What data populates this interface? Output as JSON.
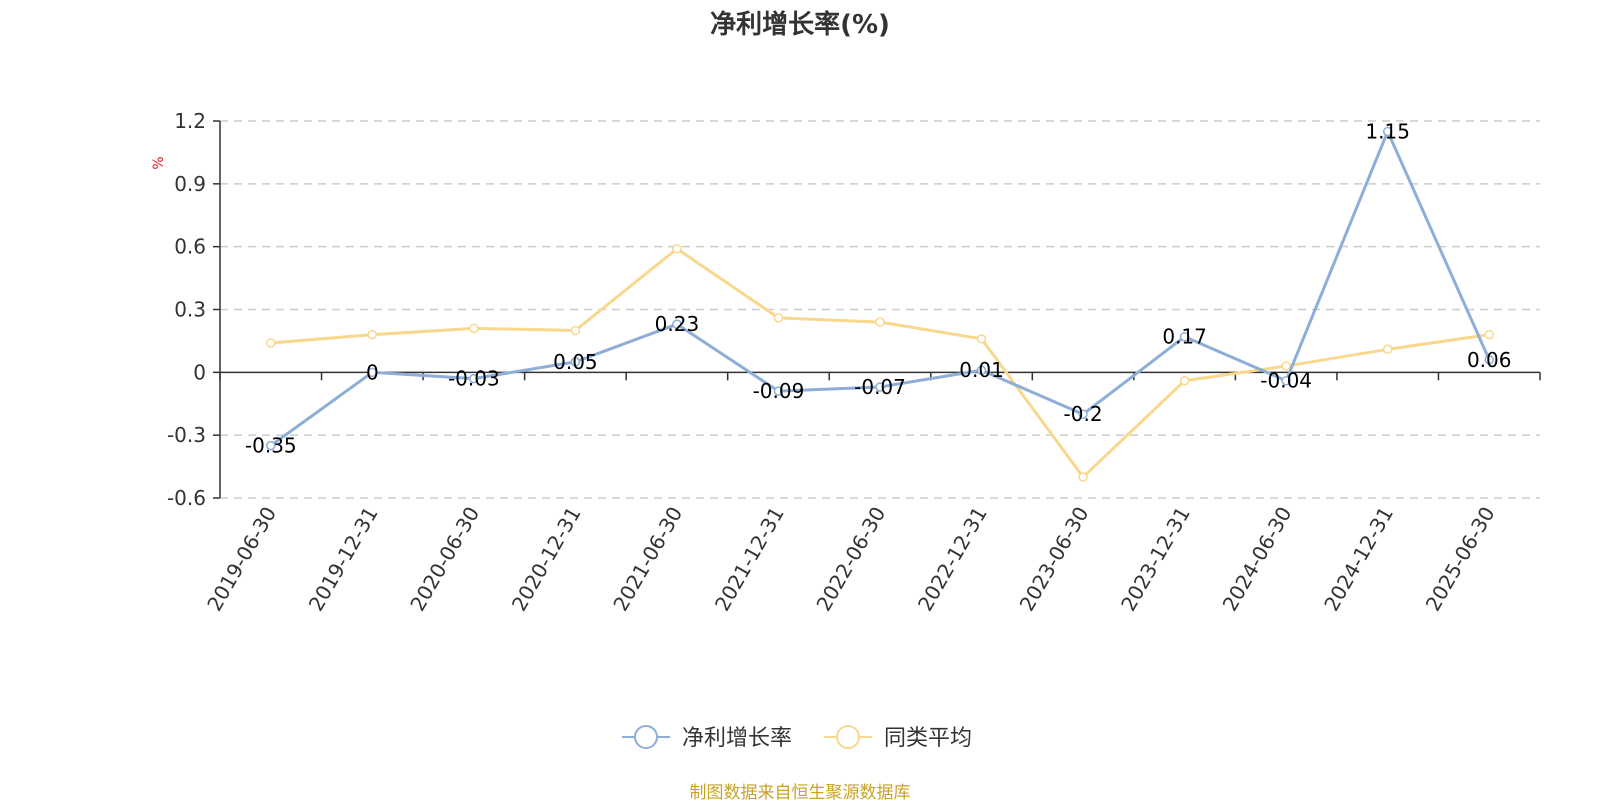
{
  "chart_data": {
    "type": "line",
    "title": "净利增长率(%)",
    "ylabel": "%",
    "xlabel": "",
    "categories": [
      "2019-06-30",
      "2019-12-31",
      "2020-06-30",
      "2020-12-31",
      "2021-06-30",
      "2021-12-31",
      "2022-06-30",
      "2022-12-31",
      "2023-06-30",
      "2023-12-31",
      "2024-06-30",
      "2024-12-31",
      "2025-06-30"
    ],
    "ylim": [
      -0.6,
      1.2
    ],
    "yticks": [
      -0.6,
      -0.3,
      0,
      0.3,
      0.6,
      0.9,
      1.2
    ],
    "ytick_labels": [
      "-0.6",
      "-0.3",
      "0",
      "0.3",
      "0.6",
      "0.9",
      "1.2"
    ],
    "grid": true,
    "legend_position": "bottom",
    "series": [
      {
        "name": "净利增长率",
        "color": "#8eaed8",
        "values": [
          -0.35,
          0,
          -0.03,
          0.05,
          0.23,
          -0.09,
          -0.07,
          0.01,
          -0.2,
          0.17,
          -0.04,
          1.15,
          0.06
        ],
        "labels": [
          "-0.35",
          "0",
          "-0.03",
          "0.05",
          "0.23",
          "-0.09",
          "-0.07",
          "0.01",
          "-0.2",
          "0.17",
          "-0.04",
          "1.15",
          "0.06"
        ],
        "show_labels": true
      },
      {
        "name": "同类平均",
        "color": "#f9d88e",
        "values": [
          0.14,
          0.18,
          0.21,
          0.2,
          0.59,
          0.26,
          0.24,
          0.16,
          -0.5,
          -0.04,
          0.03,
          0.11,
          0.18
        ],
        "show_labels": false
      }
    ],
    "source_note": "制图数据来自恒生聚源数据库"
  }
}
